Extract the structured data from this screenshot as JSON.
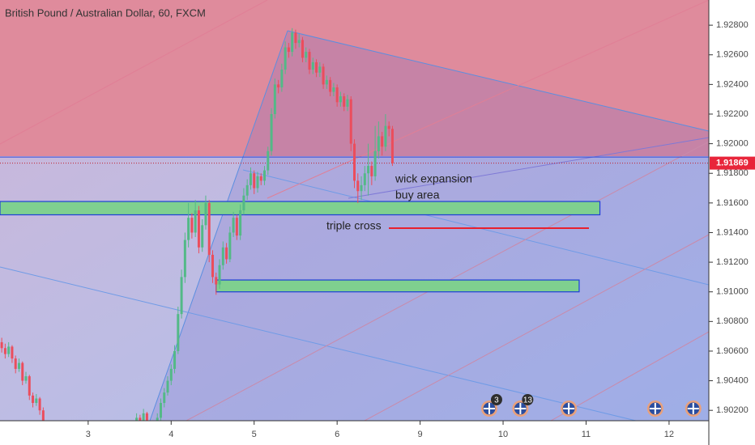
{
  "chart_data": {
    "type": "candlestick",
    "title": "British Pound / Australian Dollar, 60, FXCM",
    "up_color": "#53b987",
    "down_color": "#eb4d5c",
    "xlim": [
      -0.5,
      204.5
    ],
    "xticks": [
      {
        "value": 25,
        "label": "3"
      },
      {
        "value": 49,
        "label": "4"
      },
      {
        "value": 73,
        "label": "5"
      },
      {
        "value": 97,
        "label": "6"
      },
      {
        "value": 121,
        "label": "9"
      },
      {
        "value": 145,
        "label": "10"
      },
      {
        "value": 169,
        "label": "11"
      },
      {
        "value": 193,
        "label": "12"
      }
    ],
    "ylim": [
      1.9013,
      1.9297
    ],
    "yticks": [
      {
        "value": 1.902,
        "label": "1.90200"
      },
      {
        "value": 1.904,
        "label": "1.90400"
      },
      {
        "value": 1.906,
        "label": "1.90600"
      },
      {
        "value": 1.908,
        "label": "1.90800"
      },
      {
        "value": 1.91,
        "label": "1.91000"
      },
      {
        "value": 1.912,
        "label": "1.91200"
      },
      {
        "value": 1.914,
        "label": "1.91400"
      },
      {
        "value": 1.916,
        "label": "1.91600"
      },
      {
        "value": 1.918,
        "label": "1.91800"
      },
      {
        "value": 1.92,
        "label": "1.92000"
      },
      {
        "value": 1.922,
        "label": "1.92200"
      },
      {
        "value": 1.924,
        "label": "1.92400"
      },
      {
        "value": 1.926,
        "label": "1.92600"
      },
      {
        "value": 1.928,
        "label": "1.92800"
      }
    ],
    "last_value": 1.91869,
    "horizontal_line": 1.9191,
    "zones": [
      {
        "low": 1.9152,
        "high": 1.9161,
        "start": -0.5,
        "end": 173
      },
      {
        "low": 1.91,
        "high": 1.9108,
        "start": 62,
        "end": 167
      }
    ],
    "annotations": [
      "wick expansion",
      "buy area",
      "triple cross"
    ],
    "events": [
      {
        "x": 141,
        "label": "3"
      },
      {
        "x": 150,
        "label": "13"
      },
      {
        "x": 164
      },
      {
        "x": 189
      },
      {
        "x": 200
      }
    ],
    "x": [
      0,
      1,
      2,
      3,
      4,
      5,
      6,
      7,
      8,
      9,
      10,
      11,
      12,
      36,
      37,
      38,
      39,
      40,
      41,
      42,
      43,
      44,
      45,
      46,
      47,
      48,
      49,
      50,
      51,
      52,
      53,
      54,
      55,
      56,
      57,
      58,
      59,
      60,
      61,
      62,
      63,
      64,
      65,
      66,
      67,
      68,
      69,
      70,
      71,
      72,
      73,
      74,
      75,
      76,
      77,
      78,
      79,
      80,
      81,
      82,
      83,
      84,
      85,
      86,
      87,
      88,
      89,
      90,
      91,
      92,
      93,
      94,
      95,
      96,
      97,
      98,
      99,
      100,
      101,
      102,
      103,
      104,
      105,
      106,
      107,
      108,
      109,
      110,
      111,
      112,
      113
    ],
    "ohlc": [
      [
        1.9066,
        1.9069,
        1.9059,
        1.9062
      ],
      [
        1.9062,
        1.9065,
        1.9055,
        1.9058
      ],
      [
        1.9058,
        1.9066,
        1.9056,
        1.9063
      ],
      [
        1.9063,
        1.9064,
        1.9052,
        1.9055
      ],
      [
        1.9055,
        1.9057,
        1.9045,
        1.9048
      ],
      [
        1.9048,
        1.9055,
        1.9046,
        1.9052
      ],
      [
        1.9052,
        1.9053,
        1.9037,
        1.904
      ],
      [
        1.904,
        1.9046,
        1.9038,
        1.9043
      ],
      [
        1.9043,
        1.9044,
        1.9027,
        1.903
      ],
      [
        1.903,
        1.9032,
        1.9022,
        1.9025
      ],
      [
        1.9025,
        1.9031,
        1.9023,
        1.9028
      ],
      [
        1.9028,
        1.9029,
        1.9017,
        1.902
      ],
      [
        1.902,
        1.9022,
        1.9009,
        1.9012
      ],
      [
        1.9008,
        1.9009,
        1.9002,
        1.9005
      ],
      [
        1.9005,
        1.9013,
        1.9003,
        1.901
      ],
      [
        1.901,
        1.9012,
        1.9005,
        1.9008
      ],
      [
        1.9008,
        1.9018,
        1.9006,
        1.9015
      ],
      [
        1.9015,
        1.9017,
        1.9009,
        1.9012
      ],
      [
        1.9012,
        1.9021,
        1.901,
        1.9018
      ],
      [
        1.9018,
        1.9019,
        1.9007,
        1.901
      ],
      [
        1.901,
        1.9012,
        1.9002,
        1.9005
      ],
      [
        1.9005,
        1.9011,
        1.9003,
        1.9008
      ],
      [
        1.9008,
        1.9018,
        1.9006,
        1.9015
      ],
      [
        1.9015,
        1.9028,
        1.9013,
        1.9025
      ],
      [
        1.9025,
        1.9035,
        1.9022,
        1.9032
      ],
      [
        1.9032,
        1.9043,
        1.903,
        1.904
      ],
      [
        1.904,
        1.9051,
        1.9037,
        1.9048
      ],
      [
        1.9048,
        1.9064,
        1.9045,
        1.906
      ],
      [
        1.906,
        1.909,
        1.9058,
        1.9085
      ],
      [
        1.9085,
        1.9115,
        1.9082,
        1.911
      ],
      [
        1.911,
        1.914,
        1.9106,
        1.9135
      ],
      [
        1.9135,
        1.916,
        1.913,
        1.915
      ],
      [
        1.915,
        1.9153,
        1.9136,
        1.914
      ],
      [
        1.914,
        1.9162,
        1.9137,
        1.9155
      ],
      [
        1.9155,
        1.9158,
        1.9126,
        1.913
      ],
      [
        1.913,
        1.9149,
        1.9127,
        1.9145
      ],
      [
        1.9145,
        1.9165,
        1.9142,
        1.916
      ],
      [
        1.916,
        1.9162,
        1.912,
        1.9125
      ],
      [
        1.9125,
        1.9128,
        1.9106,
        1.911
      ],
      [
        1.911,
        1.9113,
        1.9098,
        1.9105
      ],
      [
        1.9105,
        1.9122,
        1.9102,
        1.9118
      ],
      [
        1.9118,
        1.9134,
        1.9115,
        1.913
      ],
      [
        1.913,
        1.9133,
        1.9119,
        1.9122
      ],
      [
        1.9122,
        1.9144,
        1.912,
        1.914
      ],
      [
        1.914,
        1.9154,
        1.9137,
        1.915
      ],
      [
        1.915,
        1.9152,
        1.9135,
        1.9138
      ],
      [
        1.9138,
        1.9159,
        1.9135,
        1.9155
      ],
      [
        1.9155,
        1.917,
        1.9152,
        1.9165
      ],
      [
        1.9165,
        1.9176,
        1.9162,
        1.9172
      ],
      [
        1.9172,
        1.9184,
        1.9169,
        1.918
      ],
      [
        1.918,
        1.9182,
        1.9166,
        1.917
      ],
      [
        1.917,
        1.9181,
        1.9167,
        1.9178
      ],
      [
        1.9178,
        1.918,
        1.9172,
        1.9175
      ],
      [
        1.9175,
        1.9185,
        1.9172,
        1.9182
      ],
      [
        1.9182,
        1.9198,
        1.9179,
        1.9195
      ],
      [
        1.9195,
        1.9224,
        1.9192,
        1.922
      ],
      [
        1.922,
        1.9244,
        1.9217,
        1.924
      ],
      [
        1.924,
        1.9243,
        1.9234,
        1.9238
      ],
      [
        1.9238,
        1.9254,
        1.9235,
        1.925
      ],
      [
        1.925,
        1.9269,
        1.9247,
        1.9265
      ],
      [
        1.9265,
        1.9268,
        1.9258,
        1.9262
      ],
      [
        1.9262,
        1.9278,
        1.9259,
        1.9275
      ],
      [
        1.9275,
        1.9277,
        1.9264,
        1.9268
      ],
      [
        1.9268,
        1.9274,
        1.9265,
        1.927
      ],
      [
        1.927,
        1.9272,
        1.9255,
        1.9258
      ],
      [
        1.9258,
        1.9265,
        1.9255,
        1.9262
      ],
      [
        1.9262,
        1.9264,
        1.9247,
        1.925
      ],
      [
        1.925,
        1.9258,
        1.9247,
        1.9255
      ],
      [
        1.9255,
        1.9257,
        1.9245,
        1.9248
      ],
      [
        1.9248,
        1.9255,
        1.9245,
        1.9252
      ],
      [
        1.9252,
        1.9254,
        1.9237,
        1.924
      ],
      [
        1.924,
        1.9246,
        1.9237,
        1.9243
      ],
      [
        1.9243,
        1.9245,
        1.9232,
        1.9235
      ],
      [
        1.9235,
        1.9241,
        1.9232,
        1.9238
      ],
      [
        1.9238,
        1.924,
        1.9225,
        1.9228
      ],
      [
        1.9228,
        1.9235,
        1.9225,
        1.9232
      ],
      [
        1.9232,
        1.9234,
        1.9222,
        1.9225
      ],
      [
        1.9225,
        1.9233,
        1.9222,
        1.923
      ],
      [
        1.923,
        1.9232,
        1.9195,
        1.92
      ],
      [
        1.92,
        1.9203,
        1.917,
        1.9175
      ],
      [
        1.9175,
        1.918,
        1.916,
        1.9168
      ],
      [
        1.9168,
        1.9178,
        1.9162,
        1.9172
      ],
      [
        1.9172,
        1.9185,
        1.9168,
        1.918
      ],
      [
        1.918,
        1.92,
        1.9165,
        1.9185
      ],
      [
        1.9185,
        1.9188,
        1.9172,
        1.9178
      ],
      [
        1.9178,
        1.9212,
        1.9175,
        1.9195
      ],
      [
        1.9195,
        1.9215,
        1.919,
        1.9205
      ],
      [
        1.9205,
        1.9208,
        1.9192,
        1.9198
      ],
      [
        1.9198,
        1.922,
        1.9195,
        1.9212
      ],
      [
        1.9212,
        1.9215,
        1.9205,
        1.921
      ],
      [
        1.921,
        1.9212,
        1.9185,
        1.9187
      ]
    ]
  }
}
